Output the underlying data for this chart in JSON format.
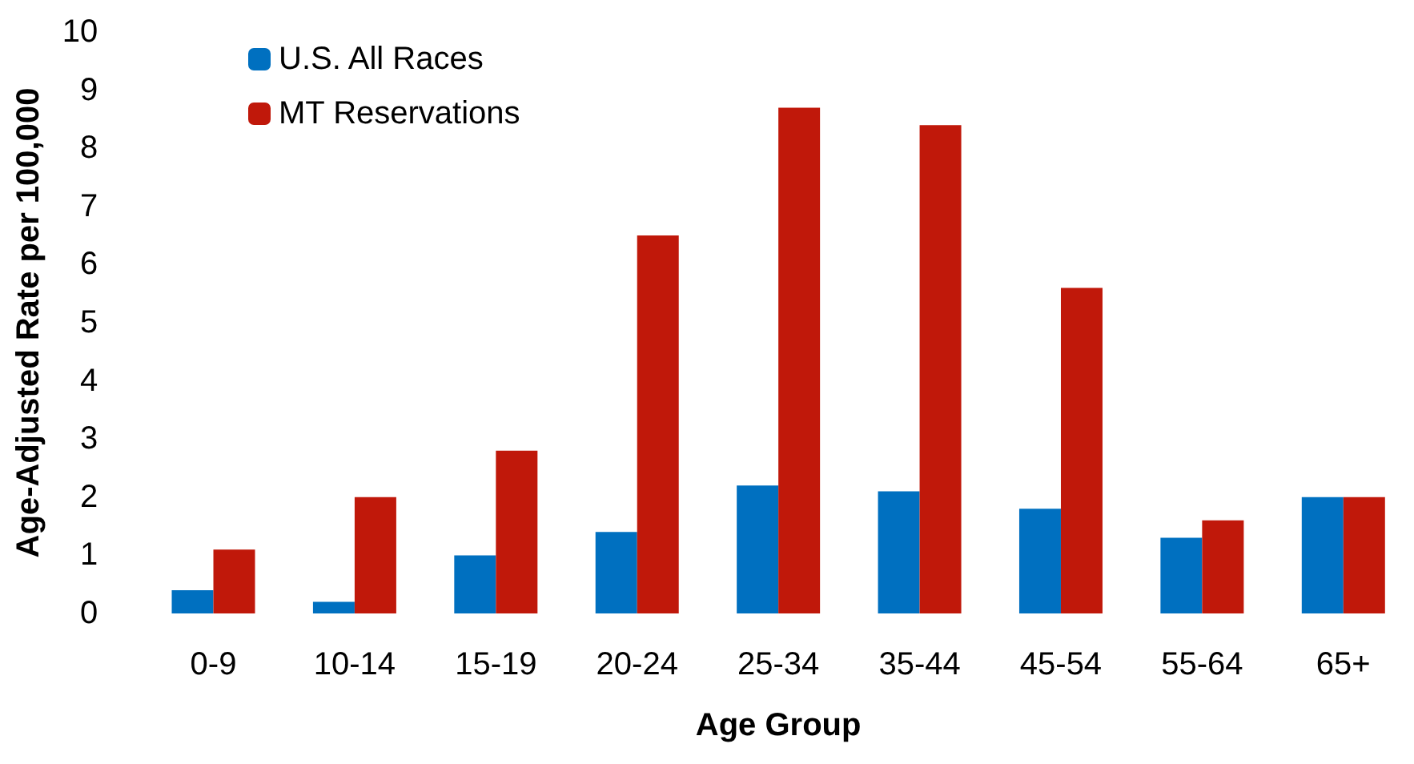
{
  "chart_data": {
    "type": "bar",
    "xlabel": "Age Group",
    "ylabel": "Age-Adjusted Rate per 100,000",
    "categories": [
      "0-9",
      "10-14",
      "15-19",
      "20-24",
      "25-34",
      "35-44",
      "45-54",
      "55-64",
      "65+"
    ],
    "series": [
      {
        "name": "U.S. All Races",
        "color": "#0070c0",
        "values": [
          0.4,
          0.2,
          1.0,
          1.4,
          2.2,
          2.1,
          1.8,
          1.3,
          2.0
        ]
      },
      {
        "name": "MT Reservations",
        "color": "#c0180a",
        "values": [
          1.1,
          2.0,
          2.8,
          6.5,
          8.7,
          8.4,
          5.6,
          1.6,
          2.0
        ]
      }
    ],
    "ylim": [
      0,
      10
    ],
    "yticks": [
      0,
      1,
      2,
      3,
      4,
      5,
      6,
      7,
      8,
      9,
      10
    ],
    "grid": false,
    "legend": "top left"
  }
}
